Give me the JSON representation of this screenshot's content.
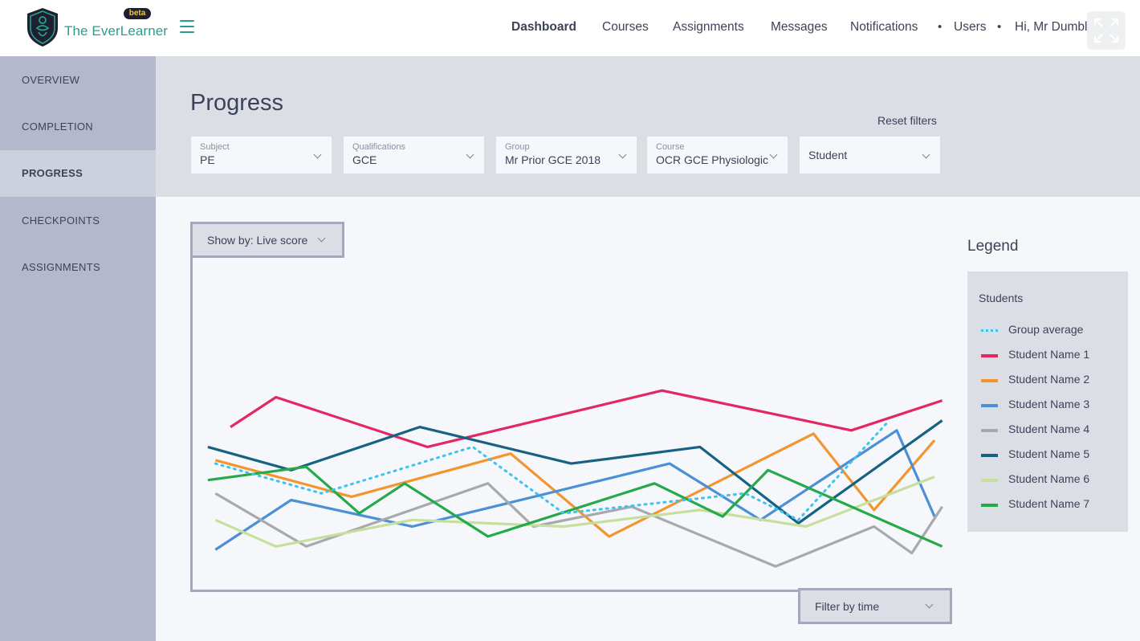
{
  "header": {
    "brand": "The EverLearner",
    "badge": "beta",
    "nav": [
      {
        "label": "Dashboard",
        "active": true
      },
      {
        "label": "Courses"
      },
      {
        "label": "Assignments"
      },
      {
        "label": "Messages"
      },
      {
        "label": "Notifications"
      },
      {
        "label": "Users"
      },
      {
        "label": "Hi, Mr Dumbledore"
      }
    ],
    "separator": "•"
  },
  "sidebar": {
    "items": [
      {
        "label": "OVERVIEW"
      },
      {
        "label": "COMPLETION"
      },
      {
        "label": "PROGRESS",
        "active": true
      },
      {
        "label": "CHECKPOINTS"
      },
      {
        "label": "ASSIGNMENTS"
      }
    ]
  },
  "main": {
    "title": "Progress",
    "reset_label": "Reset filters",
    "filters": [
      {
        "label": "Subject",
        "value": "PE"
      },
      {
        "label": "Qualifications",
        "value": "GCE"
      },
      {
        "label": "Group",
        "value": "Mr Prior GCE 2018"
      },
      {
        "label": "Course",
        "value": "OCR GCE Physiological"
      },
      {
        "label": "",
        "value": "Student"
      }
    ],
    "show_by": "Show by: Live score",
    "filter_time": "Filter by time"
  },
  "legend": {
    "title": "Legend",
    "group": "Students"
  },
  "chart_data": {
    "type": "line",
    "xlabel": "",
    "ylabel": "",
    "grid": false,
    "legend_position": "right",
    "series": [
      {
        "name": "Group average",
        "color": "#3ec2ee",
        "style": "dotted",
        "points": [
          [
            0.03,
            0.62
          ],
          [
            0.17,
            0.71
          ],
          [
            0.37,
            0.57
          ],
          [
            0.49,
            0.77
          ],
          [
            0.73,
            0.71
          ],
          [
            0.8,
            0.79
          ],
          [
            0.92,
            0.49
          ]
        ]
      },
      {
        "name": "Student Name 1",
        "color": "#e22761",
        "points": [
          [
            0.05,
            0.51
          ],
          [
            0.11,
            0.42
          ],
          [
            0.31,
            0.57
          ],
          [
            0.62,
            0.4
          ],
          [
            0.87,
            0.52
          ],
          [
            0.99,
            0.43
          ]
        ]
      },
      {
        "name": "Student Name 2",
        "color": "#f2952f",
        "points": [
          [
            0.03,
            0.61
          ],
          [
            0.21,
            0.72
          ],
          [
            0.42,
            0.59
          ],
          [
            0.55,
            0.84
          ],
          [
            0.82,
            0.53
          ],
          [
            0.9,
            0.76
          ],
          [
            0.98,
            0.55
          ]
        ]
      },
      {
        "name": "Student Name 3",
        "color": "#4b90d4",
        "points": [
          [
            0.03,
            0.88
          ],
          [
            0.13,
            0.73
          ],
          [
            0.29,
            0.81
          ],
          [
            0.63,
            0.62
          ],
          [
            0.75,
            0.79
          ],
          [
            0.93,
            0.52
          ],
          [
            0.98,
            0.78
          ]
        ]
      },
      {
        "name": "Student Name 4",
        "color": "#a8a9ad",
        "points": [
          [
            0.03,
            0.71
          ],
          [
            0.15,
            0.87
          ],
          [
            0.39,
            0.68
          ],
          [
            0.45,
            0.81
          ],
          [
            0.58,
            0.75
          ],
          [
            0.77,
            0.93
          ],
          [
            0.9,
            0.81
          ],
          [
            0.95,
            0.89
          ],
          [
            0.99,
            0.75
          ]
        ]
      },
      {
        "name": "Student Name 5",
        "color": "#176183",
        "points": [
          [
            0.02,
            0.57
          ],
          [
            0.13,
            0.64
          ],
          [
            0.3,
            0.51
          ],
          [
            0.5,
            0.62
          ],
          [
            0.67,
            0.57
          ],
          [
            0.8,
            0.8
          ],
          [
            0.99,
            0.49
          ]
        ]
      },
      {
        "name": "Student Name 6",
        "color": "#c7df9d",
        "points": [
          [
            0.03,
            0.79
          ],
          [
            0.11,
            0.87
          ],
          [
            0.29,
            0.79
          ],
          [
            0.49,
            0.81
          ],
          [
            0.67,
            0.76
          ],
          [
            0.81,
            0.81
          ],
          [
            0.98,
            0.66
          ]
        ]
      },
      {
        "name": "Student Name 7",
        "color": "#26a94b",
        "points": [
          [
            0.02,
            0.67
          ],
          [
            0.15,
            0.63
          ],
          [
            0.22,
            0.77
          ],
          [
            0.28,
            0.68
          ],
          [
            0.39,
            0.84
          ],
          [
            0.61,
            0.68
          ],
          [
            0.7,
            0.78
          ],
          [
            0.76,
            0.64
          ],
          [
            0.99,
            0.87
          ]
        ]
      }
    ]
  }
}
